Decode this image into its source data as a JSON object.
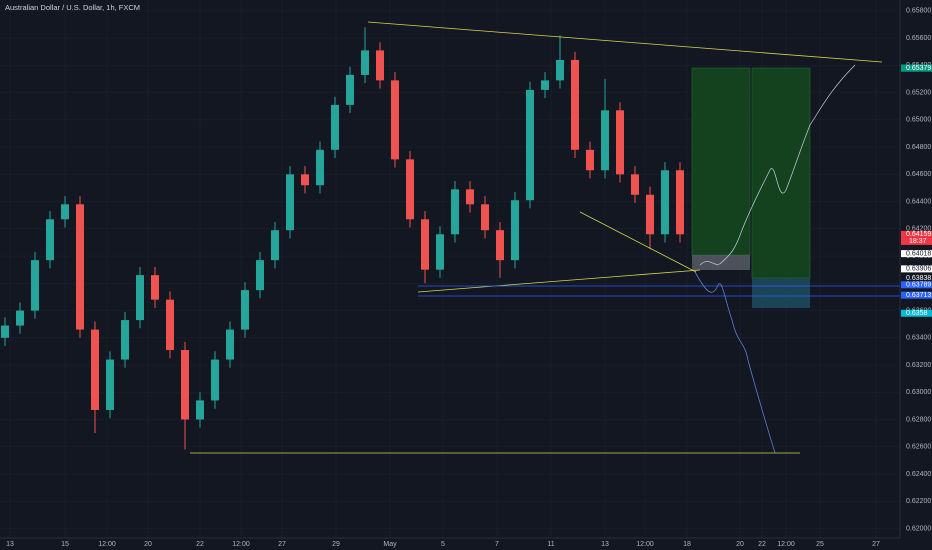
{
  "chart_data": {
    "type": "candlestick",
    "title": "Australian Dollar / U.S. Dollar, 1h, FXCM",
    "ylim": [
      0.6193,
      0.6588
    ],
    "yticks": [
      {
        "value": 0.658,
        "label": "0.65800"
      },
      {
        "value": 0.656,
        "label": "0.65600"
      },
      {
        "value": 0.654,
        "label": "0.65400"
      },
      {
        "value": 0.652,
        "label": "0.65200"
      },
      {
        "value": 0.65,
        "label": "0.65000"
      },
      {
        "value": 0.648,
        "label": "0.64800"
      },
      {
        "value": 0.646,
        "label": "0.64600"
      },
      {
        "value": 0.644,
        "label": "0.64400"
      },
      {
        "value": 0.642,
        "label": "0.64200"
      },
      {
        "value": 0.64,
        "label": "0.64000"
      },
      {
        "value": 0.638,
        "label": "0.63800"
      },
      {
        "value": 0.636,
        "label": "0.63600"
      },
      {
        "value": 0.634,
        "label": "0.63400"
      },
      {
        "value": 0.632,
        "label": "0.63200"
      },
      {
        "value": 0.63,
        "label": "0.63000"
      },
      {
        "value": 0.628,
        "label": "0.62800"
      },
      {
        "value": 0.626,
        "label": "0.62600"
      },
      {
        "value": 0.624,
        "label": "0.62400"
      },
      {
        "value": 0.622,
        "label": "0.62200"
      },
      {
        "value": 0.62,
        "label": "0.62000"
      }
    ],
    "x_axis_labels": [
      "13",
      "15",
      "12:00",
      "20",
      "22",
      "12:00",
      "27",
      "29",
      "May",
      "5",
      "7",
      "11",
      "13",
      "12:00",
      "18",
      "20",
      "22",
      "12:00",
      "25",
      "27"
    ],
    "up_color": "#26a69a",
    "down_color": "#ef5350",
    "open": [
      0.634,
      0.6349,
      0.636,
      0.6397,
      0.6427,
      0.6438,
      0.6346,
      0.6287,
      0.6324,
      0.6353,
      0.6386,
      0.6368,
      0.6331,
      0.628,
      0.6294,
      0.6324,
      0.6346,
      0.6375,
      0.6397,
      0.6419,
      0.646,
      0.6452,
      0.6478,
      0.6511,
      0.6533,
      0.6551,
      0.6529,
      0.6471,
      0.6427,
      0.639,
      0.6416,
      0.6449,
      0.6438,
      0.6419,
      0.6397,
      0.6441,
      0.6522,
      0.6529,
      0.6544,
      0.6478,
      0.6463,
      0.6507,
      0.646,
      0.6445,
      0.6416,
      0.6463
    ],
    "high": [
      0.6355,
      0.6366,
      0.6403,
      0.6433,
      0.6444,
      0.6444,
      0.6352,
      0.633,
      0.6359,
      0.6392,
      0.6392,
      0.6374,
      0.6337,
      0.63,
      0.633,
      0.6352,
      0.6381,
      0.6403,
      0.6425,
      0.6466,
      0.6466,
      0.6484,
      0.6517,
      0.6539,
      0.6568,
      0.6557,
      0.6535,
      0.6477,
      0.6433,
      0.6422,
      0.6455,
      0.6455,
      0.6444,
      0.6425,
      0.6447,
      0.6528,
      0.6535,
      0.6562,
      0.655,
      0.6484,
      0.653,
      0.6513,
      0.6466,
      0.6451,
      0.6469,
      0.6469
    ],
    "low": [
      0.6334,
      0.6343,
      0.6354,
      0.6391,
      0.6421,
      0.634,
      0.627,
      0.6281,
      0.6318,
      0.6347,
      0.6362,
      0.6325,
      0.6258,
      0.6274,
      0.6288,
      0.6318,
      0.634,
      0.6369,
      0.6391,
      0.6413,
      0.6446,
      0.6446,
      0.6472,
      0.6505,
      0.6527,
      0.6523,
      0.6465,
      0.6421,
      0.638,
      0.6384,
      0.641,
      0.6432,
      0.6413,
      0.6384,
      0.6391,
      0.6435,
      0.6516,
      0.6523,
      0.6472,
      0.6457,
      0.6457,
      0.6454,
      0.6439,
      0.6405,
      0.641,
      0.641
    ],
    "close": [
      0.6349,
      0.636,
      0.6397,
      0.6427,
      0.6438,
      0.6346,
      0.6287,
      0.6324,
      0.6353,
      0.6386,
      0.6368,
      0.6331,
      0.628,
      0.6294,
      0.6324,
      0.6346,
      0.6375,
      0.6397,
      0.6419,
      0.646,
      0.6452,
      0.6478,
      0.6511,
      0.6533,
      0.6551,
      0.6529,
      0.6471,
      0.6427,
      0.639,
      0.6416,
      0.6449,
      0.6438,
      0.6419,
      0.6397,
      0.6441,
      0.6522,
      0.6529,
      0.6544,
      0.6478,
      0.6463,
      0.6507,
      0.646,
      0.6445,
      0.6416,
      0.6463,
      0.6416
    ],
    "price_labels": [
      {
        "value": 0.65381,
        "color": "#089981"
      },
      {
        "value": 0.65379,
        "color": "#089981"
      },
      {
        "value": 0.64159,
        "color": "#f23645"
      },
      {
        "value": 0.64018,
        "color": "#ffffff"
      },
      {
        "value": 0.63906,
        "color": "#ffffff"
      },
      {
        "value": 0.63838,
        "color": "#131722"
      },
      {
        "value": 0.63789,
        "color": "#2962ff"
      },
      {
        "value": 0.63713,
        "color": "#2962ff"
      },
      {
        "value": 0.6358,
        "color": "#00bcd4"
      }
    ],
    "countdown": "18:37"
  }
}
